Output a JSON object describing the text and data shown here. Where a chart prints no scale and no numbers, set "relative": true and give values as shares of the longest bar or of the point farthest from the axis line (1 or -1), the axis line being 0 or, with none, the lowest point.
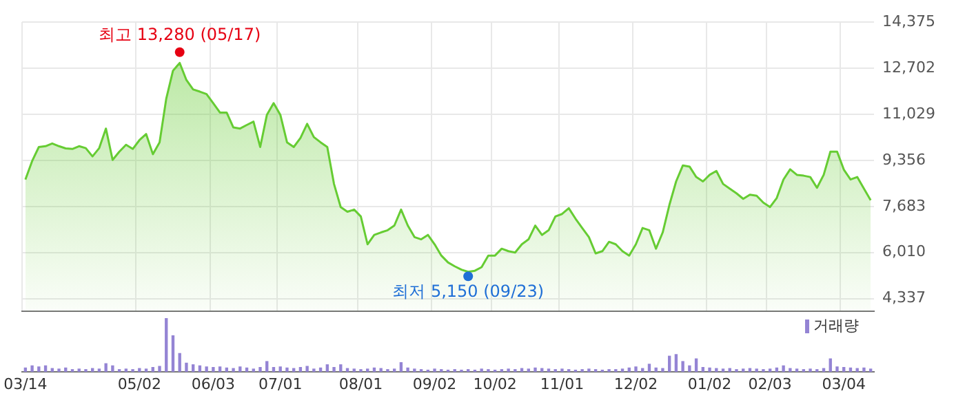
{
  "chart_data": [
    {
      "type": "area",
      "grid": true,
      "categories": [
        "03/14",
        null,
        null,
        null,
        null,
        null,
        null,
        null,
        null,
        null,
        null,
        null,
        null,
        null,
        null,
        null,
        null,
        "05/02",
        null,
        null,
        null,
        null,
        null,
        null,
        null,
        null,
        null,
        null,
        "06/03",
        null,
        null,
        null,
        null,
        null,
        null,
        null,
        null,
        null,
        "07/01",
        null,
        null,
        null,
        null,
        null,
        null,
        null,
        null,
        null,
        null,
        null,
        "08/01",
        null,
        null,
        null,
        null,
        null,
        null,
        null,
        null,
        null,
        null,
        "09/02",
        null,
        null,
        null,
        null,
        null,
        null,
        null,
        null,
        "10/02",
        null,
        null,
        null,
        null,
        null,
        null,
        null,
        null,
        null,
        "11/01",
        null,
        null,
        null,
        null,
        null,
        null,
        null,
        null,
        null,
        null,
        "12/02",
        null,
        null,
        null,
        null,
        null,
        null,
        null,
        null,
        null,
        null,
        "01/02",
        null,
        null,
        null,
        null,
        null,
        null,
        null,
        null,
        "02/03",
        null,
        null,
        null,
        null,
        null,
        null,
        null,
        null,
        null,
        null,
        "03/04",
        null,
        null,
        null,
        null
      ],
      "series": [
        {
          "color": "#66cc33",
          "values": [
            8660,
            9330,
            9840,
            9870,
            9970,
            9870,
            9790,
            9770,
            9870,
            9800,
            9500,
            9800,
            10510,
            9370,
            9670,
            9920,
            9770,
            10090,
            10310,
            9580,
            10010,
            11600,
            12610,
            12890,
            12270,
            11930,
            11850,
            11760,
            11430,
            11090,
            11090,
            10550,
            10510,
            10640,
            10760,
            9840,
            11010,
            11430,
            11010,
            10010,
            9840,
            10170,
            10680,
            10200,
            10010,
            9840,
            8500,
            7660,
            7490,
            7570,
            7320,
            6310,
            6650,
            6740,
            6820,
            6990,
            7570,
            6990,
            6570,
            6490,
            6650,
            6310,
            5900,
            5650,
            5510,
            5390,
            5310,
            5350,
            5480,
            5900,
            5900,
            6150,
            6060,
            6010,
            6310,
            6490,
            6990,
            6650,
            6820,
            7320,
            7410,
            7620,
            7240,
            6900,
            6570,
            5980,
            6060,
            6400,
            6310,
            6060,
            5900,
            6310,
            6900,
            6820,
            6150,
            6740,
            7740,
            8590,
            9170,
            9130,
            8750,
            8590,
            8830,
            8970,
            8500,
            8330,
            8160,
            7960,
            8110,
            8070,
            7820,
            7660,
            7990,
            8660,
            9030,
            8830,
            8800,
            8750,
            8360,
            8830,
            9670,
            9670,
            9020,
            8660,
            8750,
            8330,
            7910
          ]
        }
      ],
      "ylim": [
        3880,
        14375
      ],
      "yticks": [
        {
          "value": 4337,
          "label": "4,337"
        },
        {
          "value": 6010,
          "label": "6,010"
        },
        {
          "value": 7683,
          "label": "7,683"
        },
        {
          "value": 9356,
          "label": "9,356"
        },
        {
          "value": 11029,
          "label": "11,029"
        },
        {
          "value": 12702,
          "label": "12,702"
        },
        {
          "value": 14375,
          "label": "14,375"
        }
      ],
      "annotations": [
        {
          "text": "최고 13,280 (05/17)",
          "y": 13280
        },
        {
          "text": "최저 5,150 (09/23)",
          "y": 5150
        }
      ]
    },
    {
      "type": "bar",
      "relative": true,
      "legend": "top right",
      "categories": [
        null,
        null,
        null,
        null,
        null,
        null,
        null,
        null,
        null,
        null,
        null,
        null,
        null,
        null,
        null,
        null,
        null,
        null,
        null,
        null,
        null,
        null,
        null,
        null,
        null,
        null,
        null,
        null,
        null,
        null,
        null,
        null,
        null,
        null,
        null,
        null,
        null,
        null,
        null,
        null,
        null,
        null,
        null,
        null,
        null,
        null,
        null,
        null,
        null,
        null,
        null,
        null,
        null,
        null,
        null,
        null,
        null,
        null,
        null,
        null,
        null,
        null,
        null,
        null,
        null,
        null,
        null,
        null,
        null,
        null,
        null,
        null,
        null,
        null,
        null,
        null,
        null,
        null,
        null,
        null,
        null,
        null,
        null,
        null,
        null,
        null,
        null,
        null,
        null,
        null,
        null,
        null,
        null,
        null,
        null,
        null,
        null,
        null,
        null,
        null,
        null,
        null,
        null,
        null,
        null,
        null,
        null,
        null,
        null,
        null,
        null,
        null,
        null,
        null,
        null,
        null,
        null,
        null,
        null,
        null,
        null,
        null,
        null,
        null,
        null,
        null,
        null
      ],
      "series": [
        {
          "name": "거래량",
          "color": "#9484d4",
          "values": [
            0.08,
            0.12,
            0.1,
            0.12,
            0.07,
            0.06,
            0.08,
            0.05,
            0.06,
            0.05,
            0.07,
            0.06,
            0.16,
            0.12,
            0.05,
            0.06,
            0.05,
            0.07,
            0.06,
            0.09,
            0.11,
            1,
            0.68,
            0.35,
            0.17,
            0.14,
            0.12,
            0.1,
            0.09,
            0.1,
            0.08,
            0.07,
            0.1,
            0.08,
            0.06,
            0.09,
            0.2,
            0.09,
            0.1,
            0.08,
            0.07,
            0.09,
            0.11,
            0.06,
            0.08,
            0.14,
            0.09,
            0.14,
            0.07,
            0.06,
            0.05,
            0.06,
            0.08,
            0.07,
            0.05,
            0.06,
            0.18,
            0.08,
            0.06,
            0.05,
            0.04,
            0.06,
            0.05,
            0.04,
            0.05,
            0.04,
            0.05,
            0.04,
            0.06,
            0.05,
            0.04,
            0.05,
            0.06,
            0.05,
            0.07,
            0.06,
            0.08,
            0.07,
            0.06,
            0.05,
            0.06,
            0.05,
            0.04,
            0.05,
            0.06,
            0.05,
            0.04,
            0.05,
            0.05,
            0.06,
            0.08,
            0.1,
            0.07,
            0.15,
            0.08,
            0.07,
            0.3,
            0.33,
            0.2,
            0.12,
            0.25,
            0.09,
            0.08,
            0.07,
            0.06,
            0.07,
            0.05,
            0.06,
            0.07,
            0.06,
            0.05,
            0.06,
            0.08,
            0.12,
            0.07,
            0.06,
            0.05,
            0.06,
            0.05,
            0.07,
            0.25,
            0.1,
            0.09,
            0.08,
            0.07,
            0.08,
            0.06
          ]
        }
      ]
    }
  ]
}
